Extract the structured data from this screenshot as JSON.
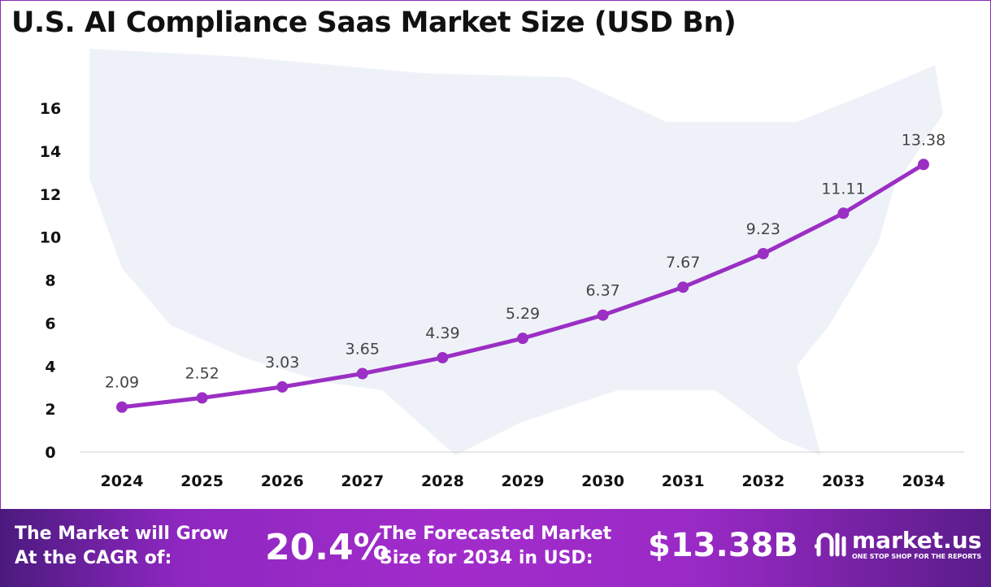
{
  "chart_data": {
    "type": "line",
    "title": "U.S. AI Compliance Saas Market Size (USD Bn)",
    "categories": [
      "2024",
      "2025",
      "2026",
      "2027",
      "2028",
      "2029",
      "2030",
      "2031",
      "2032",
      "2033",
      "2034"
    ],
    "series": [
      {
        "values": [
          2.09,
          2.52,
          3.03,
          3.65,
          4.39,
          5.29,
          6.37,
          7.67,
          9.23,
          11.11,
          13.38
        ],
        "color": "#9b2fc4"
      }
    ],
    "yticks": [
      0,
      2,
      4,
      6,
      8,
      10,
      12,
      14,
      16
    ],
    "ylim": [
      0,
      16
    ],
    "grid": false,
    "data_labels": true
  },
  "banner": {
    "cagr_label_line1": "The Market will Grow",
    "cagr_label_line2": "At the CAGR of:",
    "cagr_value": "20.4%",
    "forecast_label_line1": "The Forecasted Market",
    "forecast_label_line2": "Size for 2034 in USD:",
    "forecast_value": "$13.38B",
    "logo_name": "market.us",
    "logo_tagline": "ONE STOP SHOP FOR THE REPORTS"
  }
}
